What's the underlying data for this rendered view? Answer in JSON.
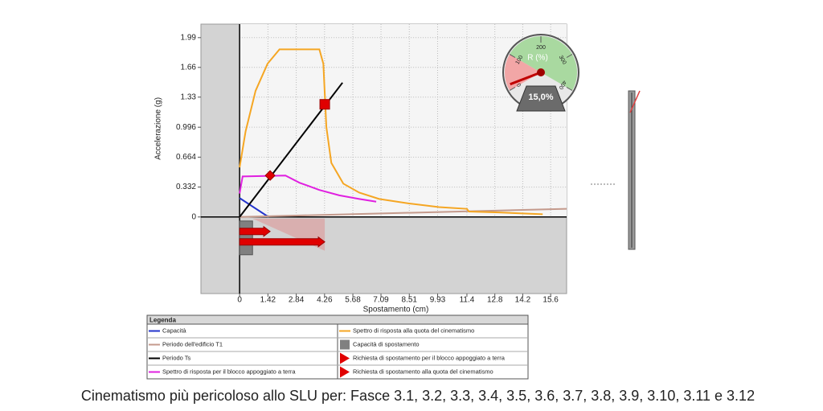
{
  "chart_data": {
    "type": "line",
    "x_label": "Spostamento (cm)",
    "y_label": "Accelerazione (g)",
    "xlim": [
      -1.94,
      16.4
    ],
    "ylim": [
      -0.85,
      2.14
    ],
    "xticks": [
      0,
      1.42,
      2.84,
      4.26,
      5.68,
      7.09,
      8.51,
      9.93,
      11.4,
      12.8,
      14.2,
      15.6
    ],
    "yticks": [
      0,
      0.332,
      0.664,
      0.996,
      1.33,
      1.66,
      1.99
    ],
    "grid": true,
    "legend_title": "Legenda",
    "series": [
      {
        "name": "Capacità",
        "kind": "line",
        "color": "#2233cc",
        "x": [
          0,
          1.45
        ],
        "y": [
          0.21,
          0
        ]
      },
      {
        "name": "Periodo dell'edificio T1",
        "kind": "line",
        "color": "#c49a8c",
        "x": [
          0,
          16.4
        ],
        "y": [
          0,
          0.09
        ]
      },
      {
        "name": "Periodo Ts",
        "kind": "line",
        "color": "#000000",
        "x": [
          0,
          5.16
        ],
        "y": [
          0,
          1.49
        ]
      },
      {
        "name": "Spettro di risposta per il blocco appoggiato a terra",
        "kind": "line",
        "color": "#e020e0",
        "x": [
          0,
          0.15,
          2.3,
          3,
          4,
          5,
          6,
          6.85
        ],
        "y": [
          0.26,
          0.45,
          0.46,
          0.38,
          0.3,
          0.24,
          0.2,
          0.17
        ]
      },
      {
        "name": "Spettro di risposta alla quota del cinematismo",
        "kind": "line",
        "color": "#f5a623",
        "x": [
          0,
          0.3,
          0.8,
          1.4,
          2.0,
          4.0,
          4.2,
          4.35,
          4.6,
          5.2,
          6,
          7,
          8.5,
          10,
          11.4,
          11.5,
          13,
          15.2
        ],
        "y": [
          0.55,
          0.95,
          1.4,
          1.7,
          1.86,
          1.86,
          1.7,
          1.0,
          0.6,
          0.37,
          0.27,
          0.2,
          0.15,
          0.11,
          0.09,
          0.06,
          0.05,
          0.03
        ]
      },
      {
        "name": "Capacità di spostamento",
        "kind": "bar",
        "color": "#808080",
        "x": [
          0.65
        ]
      },
      {
        "name": "Richiesta di spostamento per il blocco appoggiato a terra",
        "kind": "arrow",
        "marker": "diamond",
        "color": "#e00000",
        "x": [
          1.53
        ],
        "y": [
          0.46
        ]
      },
      {
        "name": "Richiesta di spostamento alla quota del cinematismo",
        "kind": "arrow",
        "marker": "square",
        "color": "#e00000",
        "x": [
          4.27
        ],
        "y": [
          1.25
        ]
      }
    ],
    "gauge": {
      "title": "R (%)",
      "value": 15,
      "value_label": "15,0%",
      "ticks": [
        0,
        100,
        200,
        300,
        400
      ]
    }
  },
  "caption": "Cinematismo più pericoloso allo SLU per: Fasce 3.1, 3.2, 3.3, 3.4, 3.5, 3.6, 3.7, 3.8, 3.9, 3.10, 3.11 e 3.12"
}
